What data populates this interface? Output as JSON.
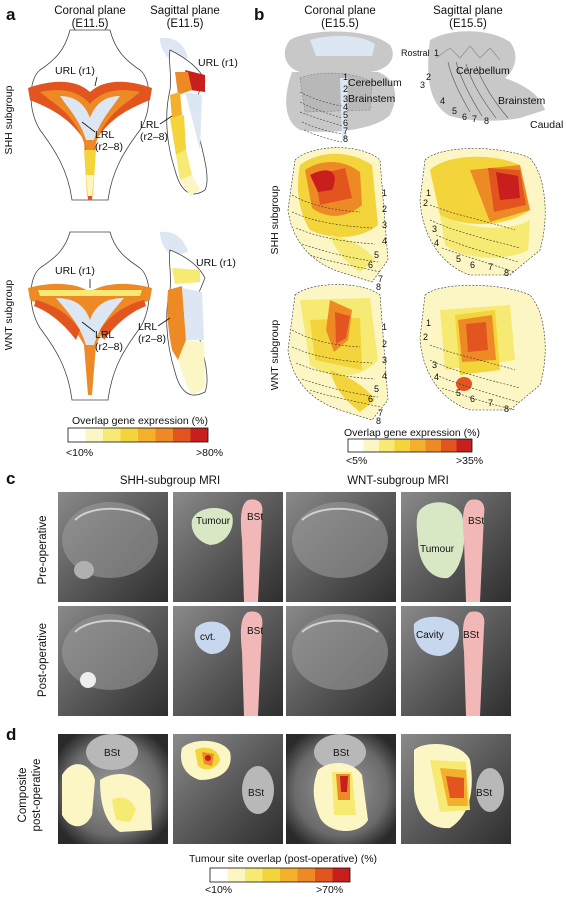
{
  "panel_a": {
    "letter": "a",
    "coronal_title": "Coronal plane",
    "coronal_stage": "(E11.5)",
    "sagittal_title": "Sagittal plane",
    "sagittal_stage": "(E11.5)",
    "row1_label": "SHH subgroup",
    "row2_label": "WNT subgroup",
    "url": "URL (r1)",
    "lrl_1": "LRL",
    "lrl_2": "(r2–8)",
    "scale_title": "Overlap gene expression (%)",
    "scale_min": "<10%",
    "scale_max": ">80%"
  },
  "panel_b": {
    "letter": "b",
    "coronal_title": "Coronal plane",
    "coronal_stage": "(E15.5)",
    "sagittal_title": "Sagittal plane",
    "sagittal_stage": "(E15.5)",
    "cerebellum": "Cerebellum",
    "brainstem": "Brainstem",
    "rostral": "Rostral",
    "caudal": "Caudal",
    "row1_label": "SHH subgroup",
    "row2_label": "WNT subgroup",
    "numbers": [
      "1",
      "2",
      "3",
      "4",
      "5",
      "6",
      "7",
      "8"
    ],
    "scale_title": "Overlap gene expression (%)",
    "scale_min": "<5%",
    "scale_max": ">35%"
  },
  "panel_c": {
    "letter": "c",
    "shh_title": "SHH-subgroup MRI",
    "wnt_title": "WNT-subgroup MRI",
    "row1_label": "Pre-operative",
    "row2_label": "Post-operative",
    "tumour": "Tumour",
    "bst": "BSt",
    "cvt": "cvt.",
    "cavity": "Cavity"
  },
  "panel_d": {
    "letter": "d",
    "row_label_1": "Composite",
    "row_label_2": "post-operative",
    "bst": "BSt",
    "scale_title": "Tumour site overlap (post-operative) (%)",
    "scale_min": "<10%",
    "scale_max": ">70%"
  },
  "colors": {
    "scale": [
      "#ffffff",
      "#fbf6c4",
      "#f6ea72",
      "#f3d43a",
      "#f2b02c",
      "#ee8a26",
      "#e2551f",
      "#c91e1e"
    ],
    "ventricle": "#dde6f3",
    "brainstem_pink": "#f2b8b8",
    "tumour_green": "#d8e8c4",
    "cavity_blue": "#c7d8ee",
    "brain_gray": "#c8c8c8"
  }
}
